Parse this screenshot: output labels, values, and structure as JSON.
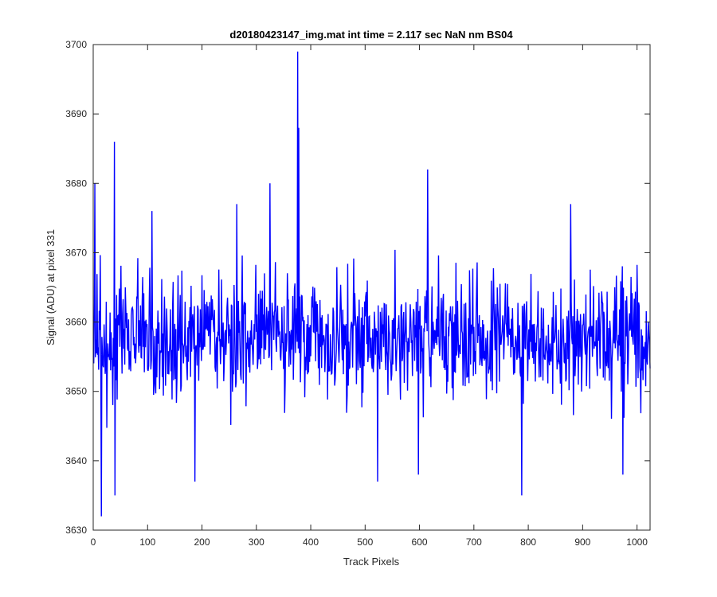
{
  "figure": {
    "title": "d20180423147_img.mat int time = 2.117 sec  NaN nm BS04"
  },
  "chart_data": {
    "type": "line",
    "title": "d20180423147_img.mat int time = 2.117 sec  NaN nm BS04",
    "xlabel": "Track Pixels",
    "ylabel": "Signal (ADU) at pixel 331",
    "xlim": [
      0,
      1024
    ],
    "ylim": [
      3630,
      3700
    ],
    "xticks": [
      0,
      100,
      200,
      300,
      400,
      500,
      600,
      700,
      800,
      900,
      1000
    ],
    "yticks": [
      3630,
      3640,
      3650,
      3660,
      3670,
      3680,
      3690,
      3700
    ],
    "grid": false,
    "legend": "none",
    "series": [
      {
        "color": "#0000ff",
        "x_start": 1,
        "x_step": 1,
        "points_count": 1024,
        "mean": 3657.8,
        "notable_points": [
          {
            "x": 3,
            "y": 3680
          },
          {
            "x": 15,
            "y": 3631
          },
          {
            "x": 39,
            "y": 3686
          },
          {
            "x": 40,
            "y": 3635
          },
          {
            "x": 108,
            "y": 3676
          },
          {
            "x": 187,
            "y": 3637
          },
          {
            "x": 264,
            "y": 3677
          },
          {
            "x": 325,
            "y": 3680
          },
          {
            "x": 376,
            "y": 3699
          },
          {
            "x": 378,
            "y": 3688
          },
          {
            "x": 523,
            "y": 3637
          },
          {
            "x": 598,
            "y": 3638
          },
          {
            "x": 615,
            "y": 3682
          },
          {
            "x": 788,
            "y": 3635
          },
          {
            "x": 878,
            "y": 3677
          },
          {
            "x": 974,
            "y": 3638
          }
        ]
      }
    ]
  }
}
